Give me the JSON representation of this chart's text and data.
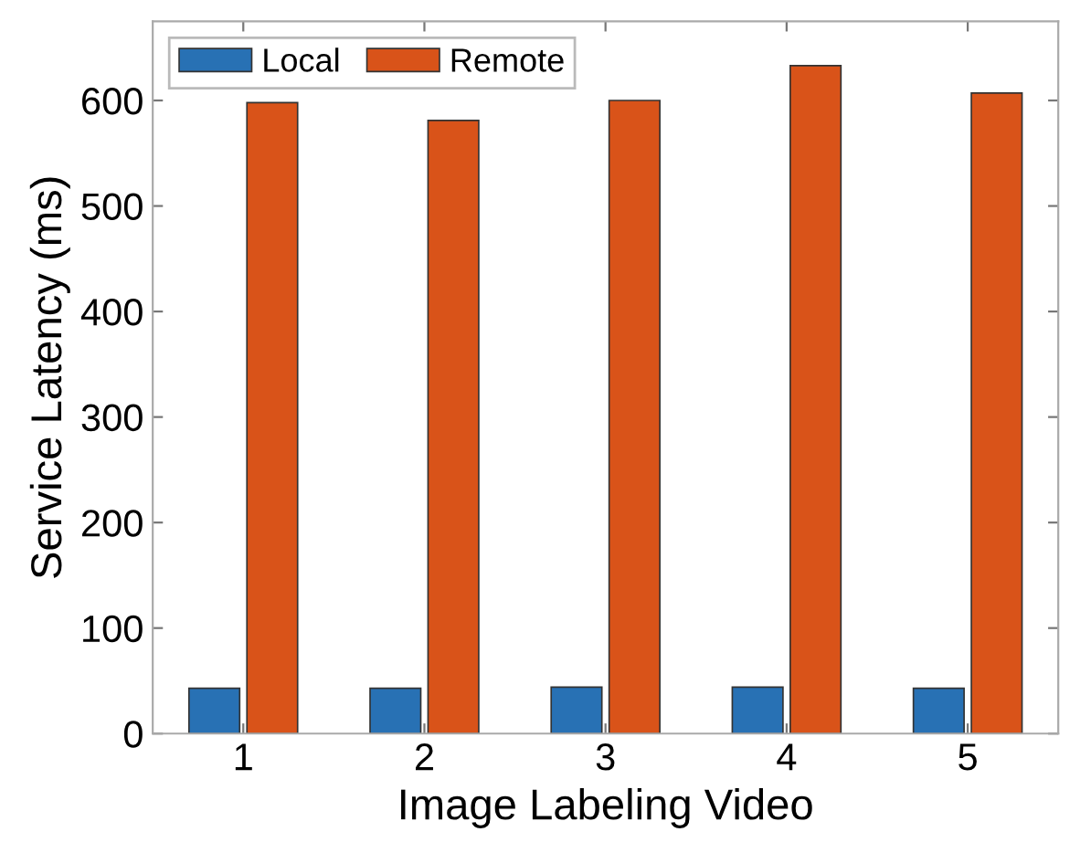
{
  "chart_data": {
    "type": "bar",
    "xlabel": "Image Labeling Video",
    "ylabel": "Service Latency (ms)",
    "categories": [
      "1",
      "2",
      "3",
      "4",
      "5"
    ],
    "series": [
      {
        "name": "Local",
        "color": "#2871b4",
        "values": [
          43,
          43,
          44,
          44,
          43
        ]
      },
      {
        "name": "Remote",
        "color": "#d95319",
        "values": [
          598,
          581,
          600,
          633,
          607
        ]
      }
    ],
    "ylim": [
      0,
      675
    ],
    "yticks": [
      0,
      100,
      200,
      300,
      400,
      500,
      600
    ],
    "grid": false,
    "legend": "top left"
  }
}
